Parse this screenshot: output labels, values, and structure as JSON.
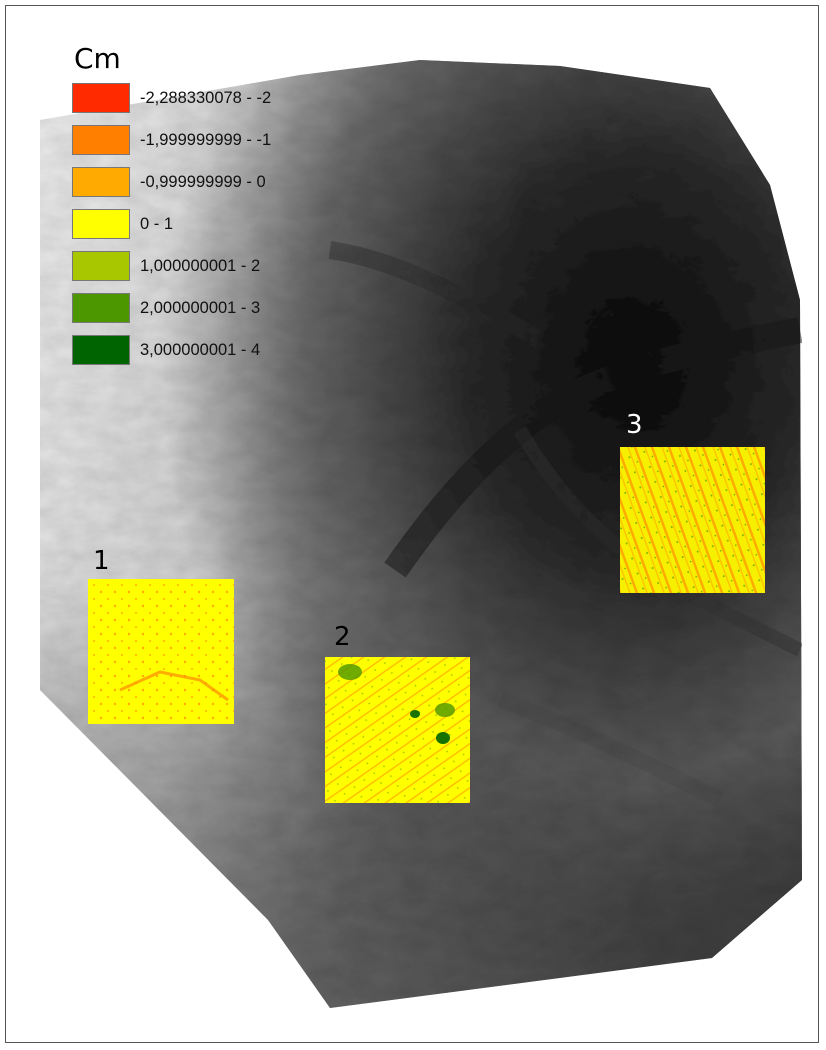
{
  "legend": {
    "title": "Cm",
    "items": [
      {
        "label": "-2,288330078 - -2",
        "color": "#ff2a00"
      },
      {
        "label": "-1,999999999 - -1",
        "color": "#ff7f00"
      },
      {
        "label": "-0,999999999 - 0",
        "color": "#ffaa00"
      },
      {
        "label": "0 - 1",
        "color": "#ffff00"
      },
      {
        "label": "1,000000001 - 2",
        "color": "#a8c700"
      },
      {
        "label": "2,000000001 - 3",
        "color": "#4c9600"
      },
      {
        "label": "3,000000001 - 4",
        "color": "#006400"
      }
    ]
  },
  "zones": [
    {
      "label": "1"
    },
    {
      "label": "2"
    },
    {
      "label": "3"
    }
  ]
}
